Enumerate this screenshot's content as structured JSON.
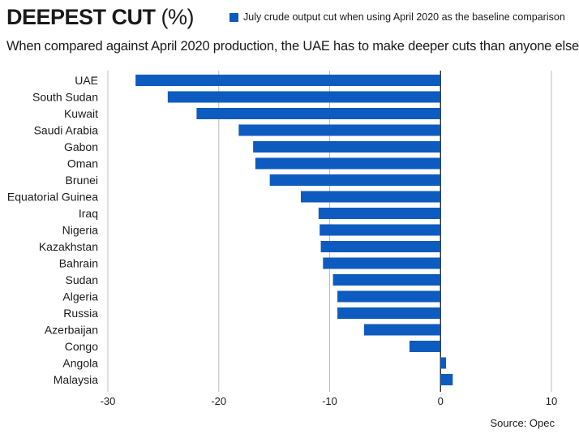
{
  "header": {
    "title": "DEEPEST CUT",
    "title_unit": "(%)",
    "subtitle": "When compared against April 2020 production, the UAE has to make deeper cuts than anyone else",
    "source": "Source: Opec"
  },
  "chart_data": {
    "type": "bar",
    "orientation": "horizontal",
    "categories": [
      "UAE",
      "South Sudan",
      "Kuwait",
      "Saudi Arabia",
      "Gabon",
      "Oman",
      "Brunei",
      "Equatorial Guinea",
      "Iraq",
      "Nigeria",
      "Kazakhstan",
      "Bahrain",
      "Sudan",
      "Algeria",
      "Russia",
      "Azerbaijan",
      "Congo",
      "Angola",
      "Malaysia"
    ],
    "series": [
      {
        "name": "July crude output cut when using April 2020 as the baseline comparison",
        "values": [
          -27.5,
          -24.6,
          -22.0,
          -18.2,
          -16.9,
          -16.7,
          -15.4,
          -12.6,
          -11.0,
          -10.9,
          -10.8,
          -10.6,
          -9.7,
          -9.3,
          -9.3,
          -6.9,
          -2.8,
          0.5,
          1.1
        ],
        "color": "#0d5bbf"
      }
    ],
    "xlim": [
      -30,
      10
    ],
    "xticks": [
      -30,
      -20,
      -10,
      0,
      10
    ],
    "grid": true,
    "legend_position": "top-right"
  }
}
